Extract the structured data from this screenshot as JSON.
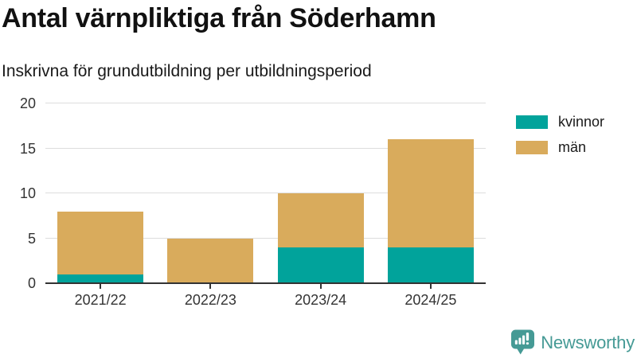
{
  "header": {
    "title": "Antal värnpliktiga från Söderhamn",
    "subtitle": "Inskrivna för grundutbildning per utbildningsperiod"
  },
  "chart_data": {
    "type": "bar",
    "stacked": true,
    "title": "Antal värnpliktiga från Söderhamn",
    "subtitle": "Inskrivna för grundutbildning per utbildningsperiod",
    "categories": [
      "2021/22",
      "2022/23",
      "2023/24",
      "2024/25"
    ],
    "series": [
      {
        "name": "kvinnor",
        "color": "#01a39b",
        "values": [
          1,
          0,
          4,
          4
        ]
      },
      {
        "name": "män",
        "color": "#d9ab5c",
        "values": [
          7,
          5,
          6,
          12
        ]
      }
    ],
    "totals": [
      8,
      5,
      10,
      16
    ],
    "xlabel": "",
    "ylabel": "",
    "ylim": [
      0,
      20
    ],
    "yticks": [
      0,
      5,
      10,
      15,
      20
    ],
    "grid": true,
    "legend_position": "right"
  },
  "branding": {
    "name": "Newsworthy",
    "icon": "bar-chart-speech-bubble-icon",
    "color": "#459a95"
  },
  "colors": {
    "kvinnor": "#01a39b",
    "man": "#d9ab5c",
    "axis": "#333333",
    "grid": "#dddddd",
    "title_text": "#111111"
  }
}
